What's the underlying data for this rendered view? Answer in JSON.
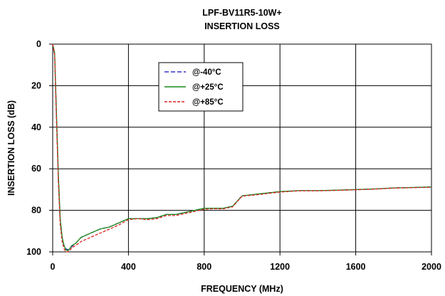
{
  "chart_data": {
    "type": "line",
    "title": "LPF-BV11R5-10W+",
    "subtitle": "INSERTION LOSS",
    "xlabel": "FREQUENCY (MHz)",
    "ylabel": "INSERTION LOSS (dB)",
    "xlim": [
      0,
      2000
    ],
    "ylim": [
      0,
      100
    ],
    "y_inverted": true,
    "x_ticks": [
      "0",
      "400",
      "800",
      "1200",
      "1600",
      "2000"
    ],
    "y_ticks": [
      "0",
      "20",
      "40",
      "60",
      "80",
      "100"
    ],
    "grid": true,
    "legend_position": "top-center",
    "series": [
      {
        "name": "@-40°C",
        "color": "#3333cc",
        "dash": "dashed",
        "x": [
          0,
          10,
          20,
          30,
          40,
          50,
          60,
          70,
          80,
          90,
          100,
          120,
          150,
          200,
          250,
          300,
          350,
          400,
          450,
          500,
          550,
          600,
          650,
          700,
          750,
          800,
          850,
          900,
          950,
          1000,
          1100,
          1200,
          1300,
          1400,
          1500,
          1600,
          1700,
          1800,
          1900,
          2000
        ],
        "y": [
          0,
          5,
          35,
          65,
          85,
          93,
          97,
          98.5,
          99,
          98.5,
          97.5,
          96,
          93,
          91,
          89,
          88,
          86,
          84,
          84,
          84,
          83.5,
          82,
          82,
          81,
          80,
          79,
          79,
          79,
          78,
          73,
          72,
          71,
          70.5,
          70.5,
          70.3,
          70,
          69.7,
          69.2,
          69,
          68.8
        ]
      },
      {
        "name": "@+25°C",
        "color": "#1a8a1a",
        "dash": "solid",
        "x": [
          0,
          10,
          20,
          30,
          40,
          50,
          60,
          70,
          80,
          90,
          100,
          120,
          150,
          200,
          250,
          300,
          350,
          400,
          450,
          500,
          550,
          600,
          650,
          700,
          750,
          800,
          850,
          900,
          950,
          1000,
          1100,
          1200,
          1300,
          1400,
          1500,
          1600,
          1700,
          1800,
          1900,
          2000
        ],
        "y": [
          0,
          4,
          33,
          63,
          84,
          93,
          97,
          99,
          99.5,
          98.5,
          97,
          96,
          93,
          91,
          89,
          88,
          86,
          84,
          84,
          84,
          83.5,
          82,
          82,
          81,
          80,
          79,
          79,
          79,
          78,
          73,
          72,
          71,
          70.5,
          70.5,
          70.3,
          70,
          69.7,
          69.2,
          69,
          68.7
        ]
      },
      {
        "name": "@+85°C",
        "color": "#dd2222",
        "dash": "dotted",
        "x": [
          0,
          10,
          20,
          30,
          40,
          50,
          60,
          70,
          80,
          90,
          100,
          120,
          150,
          200,
          250,
          300,
          350,
          400,
          450,
          500,
          550,
          600,
          650,
          700,
          750,
          800,
          850,
          900,
          950,
          1000,
          1100,
          1200,
          1300,
          1400,
          1500,
          1600,
          1700,
          1800,
          1900,
          2000
        ],
        "y": [
          0,
          5,
          36,
          67,
          87,
          95,
          98.5,
          100,
          100,
          99.5,
          98,
          97,
          95,
          93,
          91,
          89,
          87,
          84.5,
          84,
          84.5,
          84,
          82.5,
          82.5,
          81.5,
          80.5,
          79.5,
          79.2,
          79.3,
          78.3,
          73.2,
          72.3,
          71.2,
          70.6,
          70.6,
          70.4,
          70.1,
          69.8,
          69.3,
          69.1,
          68.9
        ]
      }
    ]
  }
}
